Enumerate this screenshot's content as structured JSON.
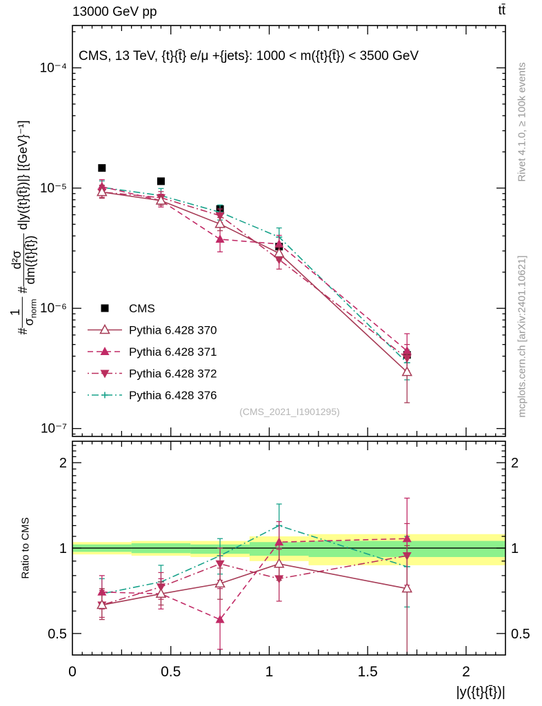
{
  "header": {
    "left": "13000 GeV pp",
    "right": "tt̄"
  },
  "plot_title": "CMS, 13 TeV, {t}{t̄} e/μ +{jets}: 1000 < m({t}{t̄}) < 3500 GeV",
  "watermark": "(CMS_2021_I1901295)",
  "side_notes": {
    "top": "Rivet 4.1.0, ≥ 100k events",
    "bottom": "mcplots.cern.ch [arXiv:2401.10621]"
  },
  "ylabel": {
    "hash1": "#",
    "f1num": "1",
    "f1den": "σ",
    "f1densub": "norm",
    "hash2": "#",
    "f2num": "d²σ",
    "f2den": "dm({t}{t̄})",
    "tail": "d|y({t}{t̄})|}",
    "units": "[{GeV}⁻¹]"
  },
  "ratio_ylabel": "Ratio to CMS",
  "xlabel": "|y({t}{t̄})|",
  "colors": {
    "cms": "#000000",
    "p370": "#a63a55",
    "p371": "#c12a66",
    "p372": "#bb2e5e",
    "p376": "#17a28a",
    "band_yellow": "#ffff8f",
    "band_green": "#8cf18c",
    "watermark": "#b5b5b5",
    "sidenote": "#979797"
  },
  "chart_data": {
    "type": "line",
    "x": [
      0.15,
      0.45,
      0.75,
      1.05,
      1.7
    ],
    "bin_edges": [
      0,
      0.3,
      0.6,
      0.9,
      1.2,
      2.2
    ],
    "xlim": [
      0,
      2.2
    ],
    "x_ticks": [
      {
        "v": 0,
        "label": "0"
      },
      {
        "v": 0.5,
        "label": "0.5"
      },
      {
        "v": 1,
        "label": "1"
      },
      {
        "v": 1.5,
        "label": "1.5"
      },
      {
        "v": 2,
        "label": "2"
      }
    ],
    "main_axis": {
      "log": true,
      "ylim": [
        8.6e-08,
        0.000225
      ],
      "ticks": [
        {
          "exp": -4,
          "label": "10⁻⁴"
        },
        {
          "exp": -5,
          "label": "10⁻⁵"
        },
        {
          "exp": -6,
          "label": "10⁻⁶"
        },
        {
          "exp": -7,
          "label": "10⁻⁷"
        }
      ]
    },
    "ratio_axis": {
      "log": true,
      "ylim": [
        0.42,
        2.38
      ],
      "ticks": [
        {
          "v": 0.5,
          "label": "0.5"
        },
        {
          "v": 1,
          "label": "1"
        },
        {
          "v": 2,
          "label": "2"
        }
      ]
    },
    "cms": {
      "name": "CMS",
      "marker": "square",
      "color_key": "cms",
      "values": [
        1.47e-05,
        1.14e-05,
        6.7e-06,
        3.26e-06,
        4.1e-07
      ],
      "err_rel": 0.05
    },
    "series": [
      {
        "name": "Pythia 6.428 370",
        "marker": "triangle-open",
        "dash": "solid",
        "color_key": "p370",
        "ratio": [
          0.63,
          0.69,
          0.75,
          0.88,
          0.72
        ],
        "ratio_err_lo": [
          0.56,
          0.63,
          0.66,
          0.77,
          0.4
        ],
        "ratio_err_hi": [
          0.72,
          0.76,
          0.85,
          1.0,
          1.02
        ]
      },
      {
        "name": "Pythia 6.428 371",
        "marker": "triangle-up",
        "dash": "dashed",
        "color_key": "p371",
        "ratio": [
          0.7,
          0.69,
          0.56,
          1.05,
          1.08
        ],
        "ratio_err_lo": [
          0.61,
          0.61,
          0.44,
          0.88,
          0.74
        ],
        "ratio_err_hi": [
          0.8,
          0.78,
          0.72,
          1.24,
          1.5
        ]
      },
      {
        "name": "Pythia 6.428 372",
        "marker": "triangle-down",
        "dash": "dashdot",
        "color_key": "p372",
        "ratio": [
          0.63,
          0.73,
          0.88,
          0.78,
          0.94
        ],
        "ratio_err_lo": [
          0.57,
          0.66,
          0.77,
          0.65,
          0.72
        ],
        "ratio_err_hi": [
          0.71,
          0.82,
          1.0,
          0.99,
          1.22
        ]
      },
      {
        "name": "Pythia 6.428 376",
        "marker": "plus",
        "dash": "dashdot",
        "color_key": "p376",
        "ratio": [
          0.69,
          0.76,
          0.94,
          1.2,
          0.86
        ],
        "ratio_err_lo": [
          0.62,
          0.68,
          0.81,
          1.0,
          0.62
        ],
        "ratio_err_hi": [
          0.78,
          0.87,
          1.08,
          1.43,
          1.1
        ]
      }
    ],
    "bands": {
      "yellow": [
        [
          0.95,
          1.05
        ],
        [
          0.94,
          1.06
        ],
        [
          0.93,
          1.06
        ],
        [
          0.9,
          1.1
        ],
        [
          0.87,
          1.12
        ]
      ],
      "green": [
        [
          0.97,
          1.03
        ],
        [
          0.96,
          1.04
        ],
        [
          0.955,
          1.03
        ],
        [
          0.94,
          1.05
        ],
        [
          0.93,
          1.06
        ]
      ]
    },
    "reference_line": 1
  }
}
